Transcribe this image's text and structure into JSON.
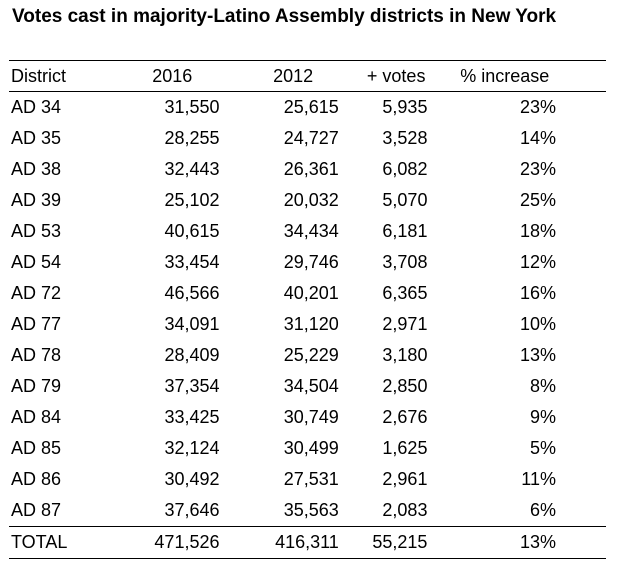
{
  "title": "Votes cast in majority-Latino Assembly districts in New York",
  "headers": {
    "district": "District",
    "y2016": "2016",
    "y2012": "2012",
    "plus_votes": "+ votes",
    "pct_increase": "% increase"
  },
  "rows": [
    {
      "district": "AD 34",
      "y2016": "31,550",
      "y2012": "25,615",
      "plus_votes": "5,935",
      "pct_increase": "23%"
    },
    {
      "district": "AD 35",
      "y2016": "28,255",
      "y2012": "24,727",
      "plus_votes": "3,528",
      "pct_increase": "14%"
    },
    {
      "district": "AD 38",
      "y2016": "32,443",
      "y2012": "26,361",
      "plus_votes": "6,082",
      "pct_increase": "23%"
    },
    {
      "district": "AD 39",
      "y2016": "25,102",
      "y2012": "20,032",
      "plus_votes": "5,070",
      "pct_increase": "25%"
    },
    {
      "district": "AD 53",
      "y2016": "40,615",
      "y2012": "34,434",
      "plus_votes": "6,181",
      "pct_increase": "18%"
    },
    {
      "district": "AD 54",
      "y2016": "33,454",
      "y2012": "29,746",
      "plus_votes": "3,708",
      "pct_increase": "12%"
    },
    {
      "district": "AD 72",
      "y2016": "46,566",
      "y2012": "40,201",
      "plus_votes": "6,365",
      "pct_increase": "16%"
    },
    {
      "district": "AD 77",
      "y2016": "34,091",
      "y2012": "31,120",
      "plus_votes": "2,971",
      "pct_increase": "10%"
    },
    {
      "district": "AD 78",
      "y2016": "28,409",
      "y2012": "25,229",
      "plus_votes": "3,180",
      "pct_increase": "13%"
    },
    {
      "district": "AD 79",
      "y2016": "37,354",
      "y2012": "34,504",
      "plus_votes": "2,850",
      "pct_increase": "8%"
    },
    {
      "district": "AD 84",
      "y2016": "33,425",
      "y2012": "30,749",
      "plus_votes": "2,676",
      "pct_increase": "9%"
    },
    {
      "district": "AD 85",
      "y2016": "32,124",
      "y2012": "30,499",
      "plus_votes": "1,625",
      "pct_increase": "5%"
    },
    {
      "district": "AD 86",
      "y2016": "30,492",
      "y2012": "27,531",
      "plus_votes": "2,961",
      "pct_increase": "11%"
    },
    {
      "district": "AD 87",
      "y2016": "37,646",
      "y2012": "35,563",
      "plus_votes": "2,083",
      "pct_increase": "6%"
    }
  ],
  "total": {
    "district": "TOTAL",
    "y2016": "471,526",
    "y2012": "416,311",
    "plus_votes": "55,215",
    "pct_increase": "13%"
  }
}
